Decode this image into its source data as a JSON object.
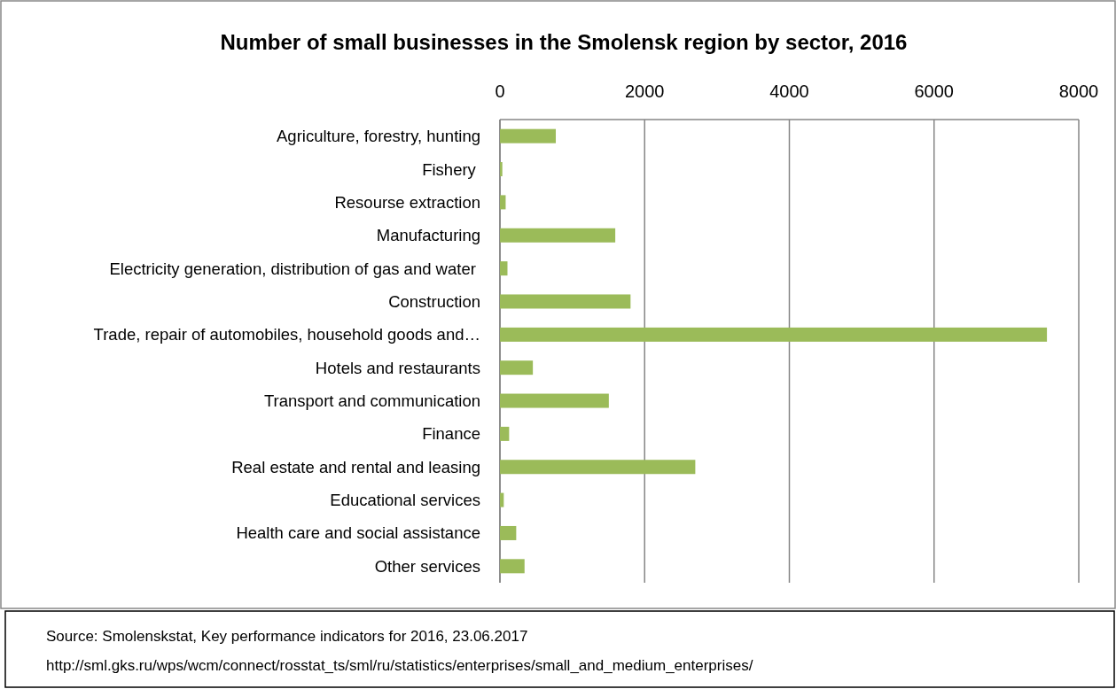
{
  "chart_data": {
    "type": "bar",
    "orientation": "horizontal",
    "title": "Number of small businesses in the Smolensk region by sector, 2016",
    "categories": [
      "Agriculture, forestry, hunting",
      "Fishery ",
      "Resourse extraction",
      "Manufacturing",
      "Electricity generation, distribution of gas and water ",
      "Construction",
      "Trade, repair of automobiles, household goods and…",
      "Hotels and restaurants",
      "Transport and communication",
      "Finance",
      "Real estate and rental and leasing",
      "Educational services",
      "Health care and social assistance",
      "Other services"
    ],
    "values": [
      772,
      33,
      79,
      1594,
      104,
      1805,
      7560,
      455,
      1505,
      127,
      2700,
      53,
      225,
      340
    ],
    "color": "#9bbb59",
    "xlim": [
      0,
      8000
    ],
    "xticks": [
      0,
      2000,
      4000,
      6000,
      8000
    ],
    "grid": "x",
    "annotations": [
      "Source: Smolenskstat, Key performance indicators for 2016, 23.06.2017",
      "http://sml.gks.ru/wps/wcm/connect/rosstat_ts/sml/ru/statistics/enterprises/small_and_medium_enterprises/"
    ]
  }
}
